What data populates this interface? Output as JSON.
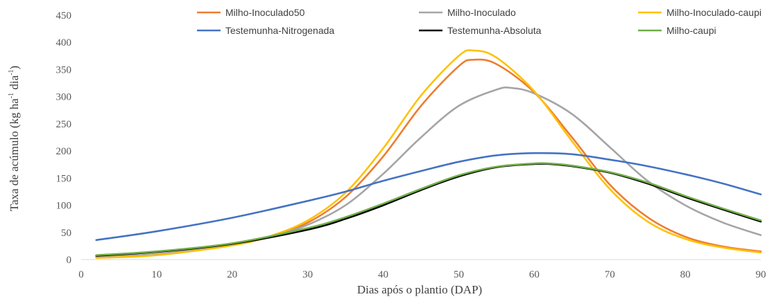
{
  "chart_data": {
    "type": "line",
    "title": "",
    "xlabel": "Dias após o plantio (DAP)",
    "ylabel": {
      "main": "Taxa de acúmulo (kg ha",
      "sup1": "-1",
      "mid": " dia",
      "sup2": "-1",
      "end": ")"
    },
    "xlim": [
      0,
      90
    ],
    "ylim": [
      0,
      450
    ],
    "xticks": [
      0,
      10,
      20,
      30,
      40,
      50,
      60,
      70,
      80,
      90
    ],
    "yticks": [
      0,
      50,
      100,
      150,
      200,
      250,
      300,
      350,
      400,
      450
    ],
    "grid": false,
    "legend_position": "top",
    "series": [
      {
        "name": "Milho-Inoculado50",
        "color": "#ED7D31",
        "x": [
          2,
          10,
          20,
          25,
          30,
          35,
          40,
          45,
          50,
          52,
          55,
          60,
          65,
          70,
          75,
          80,
          85,
          90
        ],
        "y": [
          5,
          10,
          28,
          42,
          68,
          115,
          190,
          283,
          356,
          368,
          360,
          308,
          225,
          138,
          78,
          42,
          24,
          15
        ]
      },
      {
        "name": "Milho-Inoculado",
        "color": "#A5A5A5",
        "x": [
          2,
          10,
          20,
          25,
          30,
          35,
          40,
          45,
          50,
          55,
          57,
          60,
          65,
          70,
          75,
          80,
          85,
          90
        ],
        "y": [
          5,
          10,
          28,
          42,
          64,
          100,
          158,
          225,
          283,
          313,
          316,
          306,
          268,
          207,
          145,
          100,
          68,
          45
        ]
      },
      {
        "name": "Milho-Inoculado-caupi",
        "color": "#FFC000",
        "x": [
          2,
          10,
          20,
          25,
          30,
          35,
          40,
          45,
          50,
          52,
          55,
          60,
          65,
          70,
          75,
          80,
          85,
          90
        ],
        "y": [
          3,
          8,
          26,
          43,
          72,
          123,
          205,
          302,
          375,
          385,
          372,
          310,
          218,
          130,
          70,
          38,
          22,
          13
        ]
      },
      {
        "name": "Testemunha-Nitrogenada",
        "color": "#4472C4",
        "x": [
          2,
          10,
          20,
          30,
          35,
          40,
          45,
          50,
          55,
          60,
          65,
          70,
          75,
          80,
          85,
          90
        ],
        "y": [
          36,
          52,
          77,
          108,
          125,
          145,
          163,
          180,
          192,
          196,
          194,
          184,
          172,
          157,
          140,
          120
        ]
      },
      {
        "name": "Testemunha-Absoluta",
        "color": "#000000",
        "x": [
          2,
          10,
          20,
          30,
          35,
          40,
          45,
          50,
          55,
          60,
          62,
          65,
          70,
          75,
          80,
          85,
          90
        ],
        "y": [
          7,
          14,
          29,
          55,
          75,
          100,
          128,
          153,
          170,
          176,
          176,
          172,
          160,
          140,
          115,
          92,
          70
        ]
      },
      {
        "name": "Milho-caupi",
        "color": "#70AD47",
        "x": [
          2,
          10,
          20,
          30,
          35,
          40,
          45,
          50,
          55,
          60,
          62,
          65,
          70,
          75,
          80,
          85,
          90
        ],
        "y": [
          8,
          15,
          30,
          58,
          78,
          103,
          130,
          155,
          171,
          177,
          177,
          173,
          161,
          142,
          117,
          94,
          72
        ]
      }
    ]
  }
}
